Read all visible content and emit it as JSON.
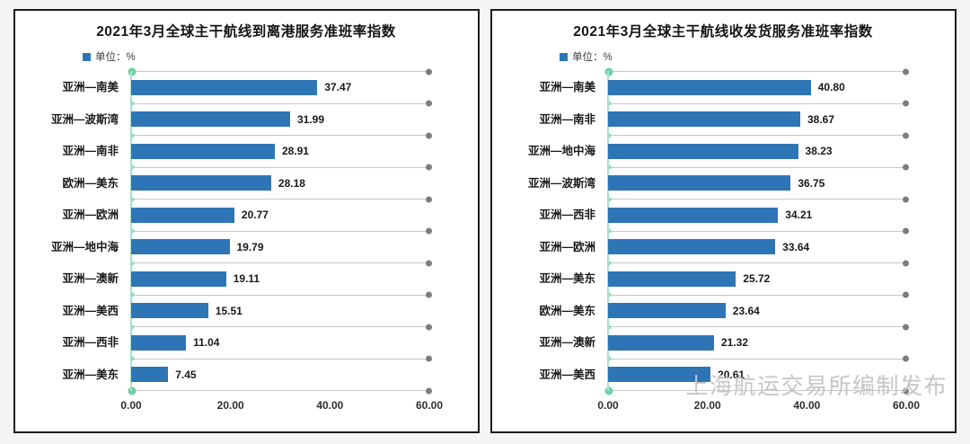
{
  "watermark": "上海航运交易所编制发布",
  "colors": {
    "bar": "#2e75b6",
    "grid_line": "#c7c7c7",
    "grid_dot": "#7d7d7d",
    "axis_line": "#a9e3cd",
    "axis_tick": "#8fd9ba",
    "axis_end_dot": "#6fcfa6",
    "watermark_color": "#c6c6c6"
  },
  "chart_data": [
    {
      "type": "bar",
      "orientation": "horizontal",
      "title": "2021年3月全球主干航线到离港服务准班率指数",
      "legend": "单位：%",
      "legend_position": "top-left",
      "categories": [
        "亚洲—南美",
        "亚洲—波斯湾",
        "亚洲—南非",
        "欧洲—美东",
        "亚洲—欧洲",
        "亚洲—地中海",
        "亚洲—澳新",
        "亚洲—美西",
        "亚洲—西非",
        "亚洲—美东"
      ],
      "values": [
        37.47,
        31.99,
        28.91,
        28.18,
        20.77,
        19.79,
        19.11,
        15.51,
        11.04,
        7.45
      ],
      "value_labels": [
        "37.47",
        "31.99",
        "28.91",
        "28.18",
        "20.77",
        "19.79",
        "19.11",
        "15.51",
        "11.04",
        "7.45"
      ],
      "x_ticks": [
        "0.00",
        "20.00",
        "40.00",
        "60.00"
      ],
      "xlim": [
        0,
        60
      ],
      "grid": "horizontal separator lines with gray end dots, green value axis"
    },
    {
      "type": "bar",
      "orientation": "horizontal",
      "title": "2021年3月全球主干航线收发货服务准班率指数",
      "legend": "单位：%",
      "legend_position": "top-left",
      "categories": [
        "亚洲—南美",
        "亚洲—南非",
        "亚洲—地中海",
        "亚洲—波斯湾",
        "亚洲—西非",
        "亚洲—欧洲",
        "亚洲—美东",
        "欧洲—美东",
        "亚洲—澳新",
        "亚洲—美西"
      ],
      "values": [
        40.8,
        38.67,
        38.23,
        36.75,
        34.21,
        33.64,
        25.72,
        23.64,
        21.32,
        20.61
      ],
      "value_labels": [
        "40.80",
        "38.67",
        "38.23",
        "36.75",
        "34.21",
        "33.64",
        "25.72",
        "23.64",
        "21.32",
        "20.61"
      ],
      "x_ticks": [
        "0.00",
        "20.00",
        "40.00",
        "60.00"
      ],
      "xlim": [
        0,
        60
      ],
      "grid": "horizontal separator lines with gray end dots, green value axis"
    }
  ]
}
